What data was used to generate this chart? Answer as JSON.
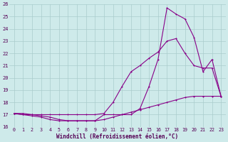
{
  "xlabel": "Windchill (Refroidissement éolien,°C)",
  "background_color": "#ceeaea",
  "grid_color": "#aacccc",
  "line_color": "#880088",
  "xlim": [
    -0.5,
    23.5
  ],
  "ylim": [
    16,
    26
  ],
  "xticks": [
    0,
    1,
    2,
    3,
    4,
    5,
    6,
    7,
    8,
    9,
    10,
    11,
    12,
    13,
    14,
    15,
    16,
    17,
    18,
    19,
    20,
    21,
    22,
    23
  ],
  "yticks": [
    16,
    17,
    18,
    19,
    20,
    21,
    22,
    23,
    24,
    25,
    26
  ],
  "line1_x": [
    0,
    1,
    2,
    3,
    4,
    5,
    6,
    7,
    8,
    9,
    10,
    11,
    12,
    13,
    14,
    15,
    16,
    17,
    18,
    19,
    20,
    21,
    22,
    23
  ],
  "line1_y": [
    17.1,
    17.0,
    17.0,
    17.0,
    17.0,
    17.0,
    17.0,
    17.0,
    17.0,
    17.0,
    17.1,
    18.0,
    19.3,
    20.5,
    21.0,
    21.6,
    22.1,
    23.0,
    23.2,
    22.0,
    21.0,
    20.8,
    20.8,
    18.5
  ],
  "line2_x": [
    0,
    1,
    2,
    3,
    4,
    5,
    6,
    7,
    8,
    9,
    10,
    11,
    12,
    13,
    14,
    15,
    16,
    17,
    18,
    19,
    20,
    21,
    22,
    23
  ],
  "line2_y": [
    17.1,
    17.0,
    16.9,
    16.8,
    16.6,
    16.5,
    16.5,
    16.5,
    16.5,
    16.5,
    17.0,
    17.0,
    17.0,
    17.0,
    17.5,
    19.3,
    21.5,
    25.7,
    25.2,
    24.8,
    23.3,
    20.5,
    21.5,
    18.5
  ],
  "line3_x": [
    0,
    1,
    2,
    3,
    4,
    5,
    6,
    7,
    8,
    9,
    10,
    11,
    12,
    13,
    14,
    15,
    16,
    17,
    18,
    19,
    20,
    21,
    22,
    23
  ],
  "line3_y": [
    17.1,
    17.1,
    17.0,
    16.9,
    16.8,
    16.6,
    16.5,
    16.5,
    16.5,
    16.5,
    16.6,
    16.8,
    17.0,
    17.2,
    17.4,
    17.6,
    17.8,
    18.0,
    18.2,
    18.4,
    18.5,
    18.5,
    18.5,
    18.5
  ]
}
